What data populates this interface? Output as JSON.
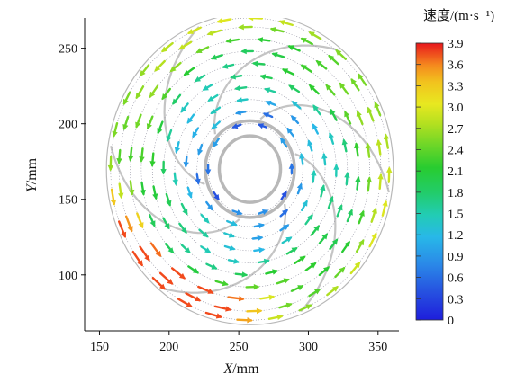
{
  "chart_data": {
    "type": "vector-field",
    "xlabel_var": "X",
    "xlabel_unit": "/mm",
    "ylabel_var": "Y",
    "ylabel_unit": "/mm",
    "xlim": [
      140,
      365
    ],
    "ylim": [
      63,
      270
    ],
    "x_ticks": [
      150,
      200,
      250,
      300,
      350
    ],
    "y_ticks": [
      100,
      150,
      200,
      250
    ],
    "colorbar": {
      "title": "速度/(m·s⁻¹)",
      "ticks": [
        "3.9",
        "3.6",
        "3.3",
        "3.0",
        "2.7",
        "2.4",
        "2.1",
        "1.8",
        "1.5",
        "1.2",
        "0.9",
        "0.6",
        "0.3",
        "0"
      ],
      "min": 0,
      "max": 3.9,
      "colors": [
        "#e8161c",
        "#f24a1c",
        "#f58a1e",
        "#f2c21e",
        "#e8e820",
        "#b4e020",
        "#6cd628",
        "#28cc30",
        "#22cc6a",
        "#22ccb4",
        "#28b8e8",
        "#2a88e8",
        "#2650e0",
        "#1e1edc"
      ]
    },
    "field": {
      "center": [
        258,
        170
      ],
      "outer_radius": 103,
      "hub_radii": [
        22,
        32
      ],
      "blade_count": 6,
      "ring_radii": [
        30,
        38,
        46,
        54,
        62,
        70,
        78,
        86,
        94,
        100
      ],
      "arrow_count_per_ring": [
        10,
        12,
        14,
        16,
        18,
        20,
        22,
        24,
        26,
        28
      ],
      "flow_direction": "counterclockwise",
      "speed_trend": "increases with radius; maximum ~3.6 near bottom-left periphery"
    }
  }
}
